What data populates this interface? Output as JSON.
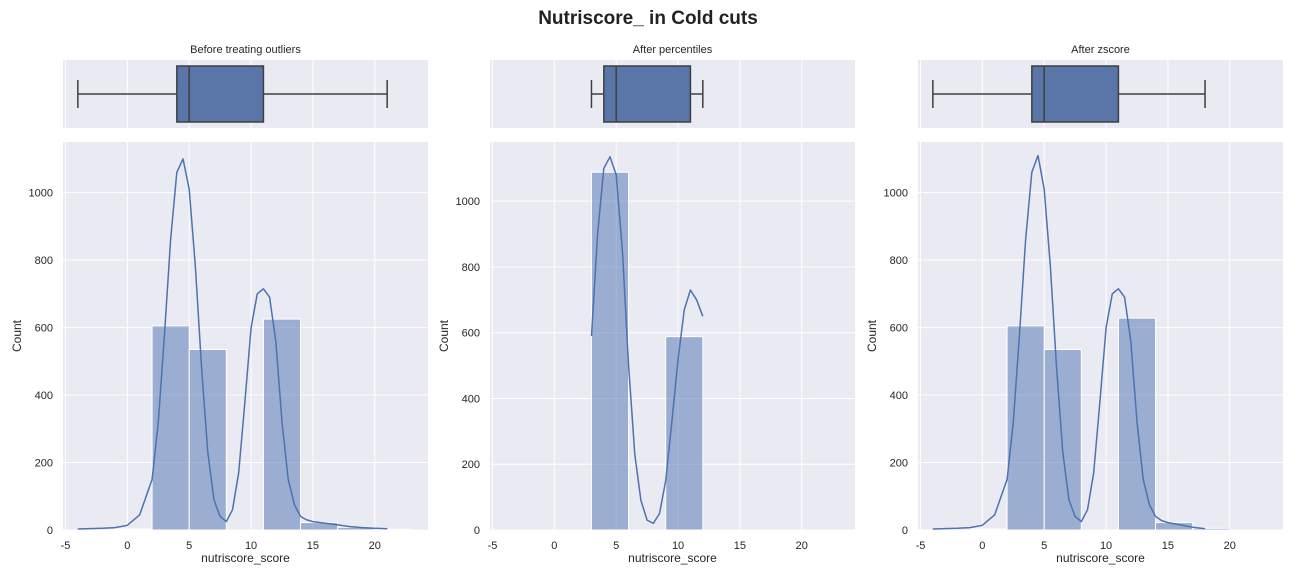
{
  "figure": {
    "title": "Nutriscore_ in Cold cuts"
  },
  "theme": {
    "panel_bg": "#eaeaf2",
    "grid": "#ffffff",
    "bar_fill": "#4c72b0",
    "bar_alpha": 0.5,
    "line": "#4c72b0",
    "box_fill": "#5a76a8",
    "box_edge": "#3f3f3f"
  },
  "chart_data": [
    {
      "type": "box",
      "title": "Before treating outliers",
      "xlim": [
        -5.2,
        24.3
      ],
      "stats": {
        "whisker_low": -4,
        "q1": 4,
        "median": 5,
        "q3": 11,
        "whisker_high": 21
      }
    },
    {
      "type": "box",
      "title": "After percentiles",
      "xlim": [
        -5.2,
        24.3
      ],
      "stats": {
        "whisker_low": 3,
        "q1": 4,
        "median": 5,
        "q3": 11,
        "whisker_high": 12
      }
    },
    {
      "type": "box",
      "title": "After zscore",
      "xlim": [
        -5.2,
        24.3
      ],
      "stats": {
        "whisker_low": -4,
        "q1": 4,
        "median": 5,
        "q3": 11,
        "whisker_high": 18
      }
    },
    {
      "type": "bar",
      "xlabel": "nutriscore_score",
      "ylabel": "Count",
      "xlim": [
        -5.2,
        24.3
      ],
      "ylim": [
        0,
        1150
      ],
      "xticks": [
        -5,
        0,
        5,
        10,
        15,
        20
      ],
      "yticks": [
        0,
        200,
        400,
        600,
        800,
        1000
      ],
      "bins": [
        {
          "x0": -4,
          "x1": -1,
          "count": 0
        },
        {
          "x0": -1,
          "x1": 2,
          "count": 3
        },
        {
          "x0": 2,
          "x1": 5,
          "count": 605
        },
        {
          "x0": 5,
          "x1": 8,
          "count": 535
        },
        {
          "x0": 8,
          "x1": 11,
          "count": 0
        },
        {
          "x0": 11,
          "x1": 14,
          "count": 625
        },
        {
          "x0": 14,
          "x1": 17,
          "count": 22
        },
        {
          "x0": 17,
          "x1": 20,
          "count": 8
        },
        {
          "x0": 20,
          "x1": 23,
          "count": 2
        }
      ],
      "kde": {
        "x": [
          -4,
          -2,
          -1,
          0,
          1,
          2,
          2.5,
          3,
          3.5,
          4,
          4.5,
          5,
          5.5,
          6,
          6.5,
          7,
          7.5,
          8,
          8.5,
          9,
          9.5,
          10,
          10.5,
          11,
          11.5,
          12,
          12.5,
          13,
          13.5,
          14,
          14.5,
          15,
          16,
          17,
          18,
          19,
          20,
          21
        ],
        "y": [
          3,
          5,
          7,
          14,
          45,
          150,
          320,
          580,
          860,
          1060,
          1100,
          1010,
          780,
          480,
          230,
          90,
          40,
          25,
          60,
          170,
          380,
          600,
          700,
          715,
          690,
          560,
          320,
          150,
          75,
          40,
          30,
          25,
          20,
          15,
          10,
          7,
          5,
          4
        ]
      }
    },
    {
      "type": "bar",
      "xlabel": "nutriscore_score",
      "ylabel": "Count",
      "xlim": [
        -5.2,
        24.3
      ],
      "ylim": [
        0,
        1180
      ],
      "xticks": [
        -5,
        0,
        5,
        10,
        15,
        20
      ],
      "yticks": [
        0,
        200,
        400,
        600,
        800,
        1000
      ],
      "bins": [
        {
          "x0": 3,
          "x1": 6,
          "count": 1088
        },
        {
          "x0": 6,
          "x1": 9,
          "count": 0
        },
        {
          "x0": 9,
          "x1": 12,
          "count": 588
        }
      ],
      "kde": {
        "x": [
          3,
          3.5,
          4,
          4.5,
          5,
          5.5,
          6,
          6.5,
          7,
          7.5,
          8,
          8.5,
          9,
          9.5,
          10,
          10.5,
          11,
          11.5,
          12
        ],
        "y": [
          590,
          900,
          1100,
          1135,
          1080,
          850,
          500,
          230,
          90,
          30,
          20,
          50,
          150,
          330,
          520,
          670,
          730,
          700,
          650
        ]
      }
    },
    {
      "type": "bar",
      "xlabel": "nutriscore_score",
      "ylabel": "Count",
      "xlim": [
        -5.2,
        24.3
      ],
      "ylim": [
        0,
        1150
      ],
      "xticks": [
        -5,
        0,
        5,
        10,
        15,
        20
      ],
      "yticks": [
        0,
        200,
        400,
        600,
        800,
        1000
      ],
      "bins": [
        {
          "x0": -4,
          "x1": -1,
          "count": 0
        },
        {
          "x0": -1,
          "x1": 2,
          "count": 3
        },
        {
          "x0": 2,
          "x1": 5,
          "count": 605
        },
        {
          "x0": 5,
          "x1": 8,
          "count": 535
        },
        {
          "x0": 8,
          "x1": 11,
          "count": 0
        },
        {
          "x0": 11,
          "x1": 14,
          "count": 628
        },
        {
          "x0": 14,
          "x1": 17,
          "count": 22
        },
        {
          "x0": 17,
          "x1": 20,
          "count": 5
        }
      ],
      "kde": {
        "x": [
          -4,
          -2,
          -1,
          0,
          1,
          2,
          2.5,
          3,
          3.5,
          4,
          4.5,
          5,
          5.5,
          6,
          6.5,
          7,
          7.5,
          8,
          8.5,
          9,
          9.5,
          10,
          10.5,
          11,
          11.5,
          12,
          12.5,
          13,
          13.5,
          14,
          14.5,
          15,
          16,
          17,
          18
        ],
        "y": [
          3,
          5,
          7,
          14,
          45,
          150,
          320,
          580,
          860,
          1060,
          1110,
          1010,
          780,
          480,
          230,
          90,
          40,
          25,
          60,
          170,
          380,
          600,
          700,
          715,
          690,
          560,
          320,
          150,
          75,
          40,
          28,
          22,
          15,
          8,
          4
        ]
      }
    }
  ]
}
